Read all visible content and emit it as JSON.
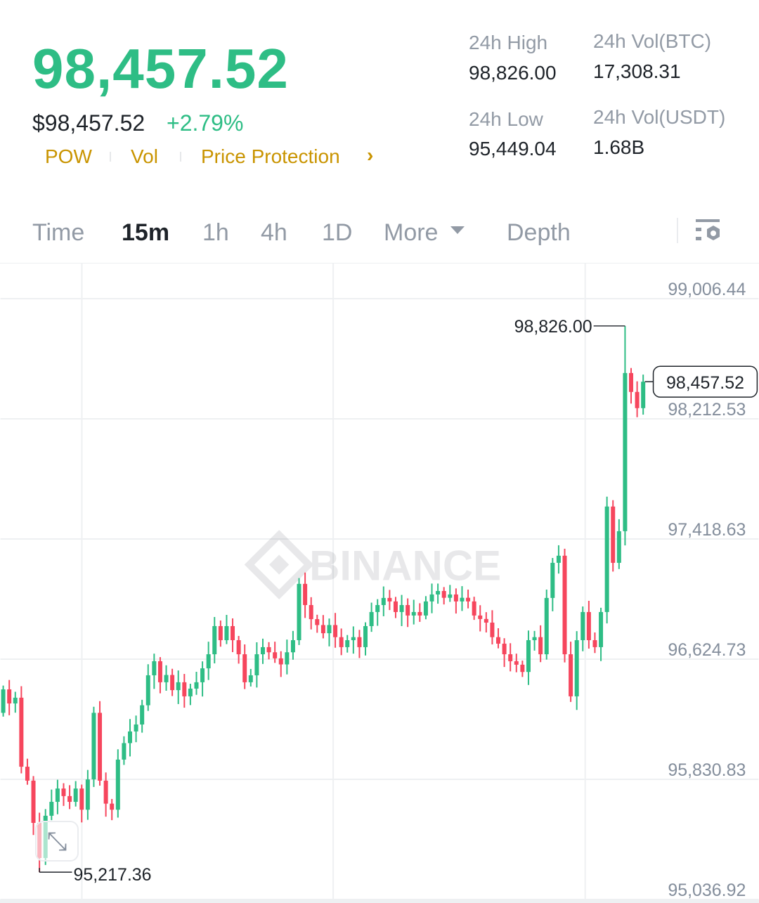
{
  "header": {
    "last_price": "98,457.52",
    "usd_price": "$98,457.52",
    "change": "+2.79%",
    "tags": [
      "POW",
      "Vol",
      "Price Protection"
    ],
    "stats": [
      {
        "label": "24h High",
        "value": "98,826.00"
      },
      {
        "label": "24h Vol(BTC)",
        "value": "17,308.31"
      },
      {
        "label": "24h Low",
        "value": "95,449.04"
      },
      {
        "label": "24h Vol(USDT)",
        "value": "1.68B"
      }
    ]
  },
  "tabs": [
    {
      "label": "Time"
    },
    {
      "label": "15m",
      "active": true
    },
    {
      "label": "1h"
    },
    {
      "label": "4h"
    },
    {
      "label": "1D"
    },
    {
      "label": "More"
    },
    {
      "label": "Depth"
    }
  ],
  "colors": {
    "up": "#2ebd85",
    "down": "#f6465d",
    "accent": "#c99400"
  },
  "watermark": "BINANCE",
  "chart_data": {
    "type": "candlestick",
    "interval": "15m",
    "y_ticks": [
      "99,006.44",
      "98,212.53",
      "97,418.63",
      "96,624.73",
      "95,830.83",
      "95,036.92"
    ],
    "y_tick_values": [
      99006.44,
      98212.53,
      97418.63,
      96624.73,
      95830.83,
      95036.92
    ],
    "high_label": "98,826.00",
    "high": 98826.0,
    "low_label": "95,217.36",
    "low": 95217.36,
    "current_label": "98,457.52",
    "current": 98457.52,
    "first_open": 96270,
    "closes": [
      96425,
      96332,
      96370,
      95914,
      95822,
      95543,
      95311,
      95590,
      95682,
      95770,
      95720,
      95682,
      95770,
      95630,
      95830,
      96270,
      95822,
      95670,
      95630,
      95961,
      96070,
      96147,
      96193,
      96320,
      96518,
      96611,
      96472,
      96520,
      96420,
      96472,
      96379,
      96430,
      96472,
      96564,
      96657,
      96843,
      96750,
      96843,
      96750,
      96657,
      96472,
      96518,
      96657,
      96704,
      96670,
      96630,
      96590,
      96670,
      96750,
      97122,
      96982,
      96889,
      96850,
      96796,
      96850,
      96770,
      96704,
      96750,
      96770,
      96704,
      96843,
      96936,
      96982,
      97029,
      97006,
      96936,
      96982,
      96913,
      96936,
      96913,
      97006,
      97052,
      97075,
      97030,
      97052,
      97006,
      97030,
      97006,
      96913,
      96890,
      96866,
      96770,
      96727,
      96657,
      96611,
      96588,
      96540,
      96750,
      96770,
      96657,
      97029,
      97261,
      97308,
      96657,
      96379,
      96750,
      96936,
      96750,
      96704,
      96936,
      97633,
      97261,
      97470,
      98515,
      98390,
      98283,
      98457.52
    ]
  }
}
